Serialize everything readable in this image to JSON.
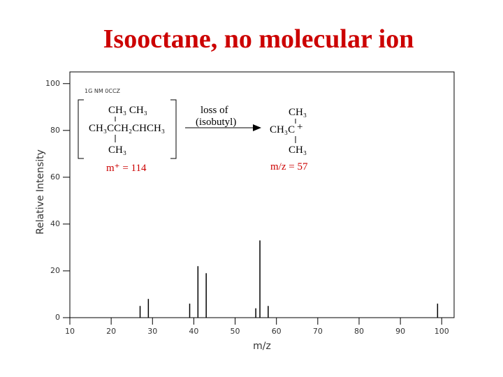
{
  "chart_data": {
    "type": "bar",
    "title": "Isooctane, no molecular ion",
    "x_label": "m/z",
    "y_label": "Relative Intensity",
    "x": [
      27,
      29,
      39,
      41,
      43,
      55,
      56,
      58,
      99
    ],
    "values": [
      5,
      8,
      6,
      22,
      19,
      4,
      33,
      5,
      6
    ],
    "color": "#000000",
    "xlim": [
      10,
      103
    ],
    "xticks": [
      10,
      20,
      30,
      40,
      50,
      60,
      70,
      80,
      90,
      100
    ],
    "ylim": [
      0,
      105
    ],
    "yticks": [
      0,
      20,
      40,
      60,
      80,
      100
    ],
    "annotations": {
      "code": "1G NM 0CCZ",
      "left_top": "CH₃  CH₃",
      "left_mid": "CH₃CCH₂CHCH₃",
      "left_bottom": "CH₃",
      "left_mass": "m⁺ = 114",
      "loss_1": "loss of",
      "loss_2": "(isobutyl)",
      "right_top": "CH₃",
      "right_mid": "CH₃C",
      "right_charge": "+",
      "right_bottom": "CH₃",
      "right_mass": "m/z = 57"
    }
  }
}
